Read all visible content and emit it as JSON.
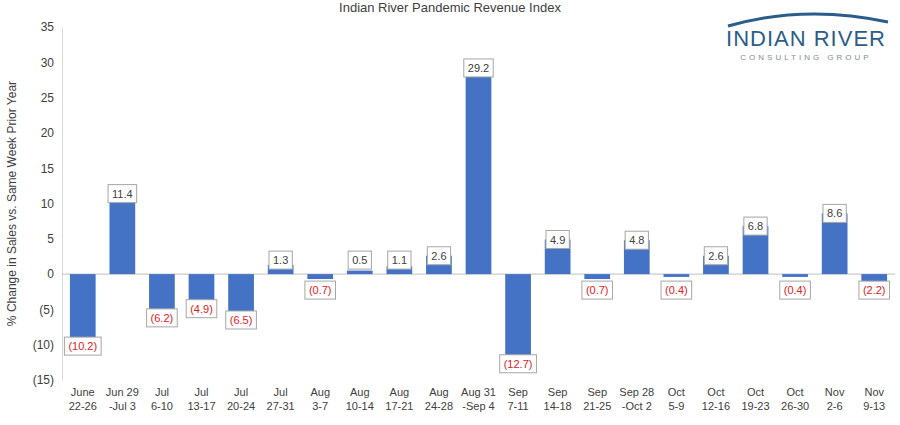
{
  "chart_data": {
    "type": "bar",
    "title": "Indian River Pandemic Revenue Index",
    "y_label": "% Change in Sales vs. Same Week Prior Year",
    "categories": [
      "June\n22-26",
      "Jun 29\n-Jul 3",
      "Jul\n6-10",
      "Jul\n13-17",
      "Jul\n20-24",
      "Jul\n27-31",
      "Aug\n3-7",
      "Aug\n10-14",
      "Aug\n17-21",
      "Aug\n24-28",
      "Aug 31\n-Sep 4",
      "Sep\n7-11",
      "Sep\n14-18",
      "Sep\n21-25",
      "Sep 28\n-Oct 2",
      "Oct\n5-9",
      "Oct\n12-16",
      "Oct\n19-23",
      "Oct\n26-30",
      "Nov\n2-6",
      "Nov\n9-13"
    ],
    "values": [
      -10.2,
      11.4,
      -6.2,
      -4.9,
      -6.5,
      1.3,
      -0.7,
      0.5,
      1.1,
      2.6,
      29.2,
      -12.7,
      4.9,
      -0.7,
      4.8,
      -0.4,
      2.6,
      6.8,
      -0.4,
      8.6,
      -2.2
    ],
    "value_labels": [
      "(10.2)",
      "11.4",
      "(6.2)",
      "(4.9)",
      "(6.5)",
      "1.3",
      "(0.7)",
      "0.5",
      "1.1",
      "2.6",
      "29.2",
      "(12.7)",
      "4.9",
      "(0.7)",
      "4.8",
      "(0.4)",
      "2.6",
      "6.8",
      "(0.4)",
      "8.6",
      "(2.2)"
    ],
    "color": "#4472c4",
    "ylim": [
      -15,
      35
    ],
    "yticks": [
      {
        "value": -15,
        "label": "(15)"
      },
      {
        "value": -10,
        "label": "(10)"
      },
      {
        "value": -5,
        "label": "(5)"
      },
      0,
      5,
      10,
      15,
      20,
      25,
      30,
      35
    ],
    "grid": false,
    "data_labels": true
  },
  "logo": {
    "name": "INDIAN RIVER",
    "tagline": "CONSULTING GROUP"
  }
}
